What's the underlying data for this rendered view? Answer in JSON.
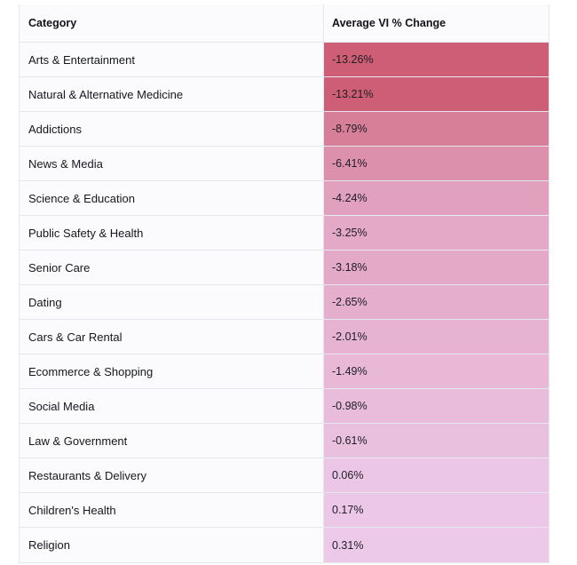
{
  "chart_data": {
    "type": "table",
    "columns": [
      "Category",
      "Average VI % Change"
    ],
    "rows": [
      {
        "category": "Arts & Entertainment",
        "value": -13.26,
        "label": "-13.26%"
      },
      {
        "category": "Natural & Alternative Medicine",
        "value": -13.21,
        "label": "-13.21%"
      },
      {
        "category": "Addictions",
        "value": -8.79,
        "label": "-8.79%"
      },
      {
        "category": "News & Media",
        "value": -6.41,
        "label": "-6.41%"
      },
      {
        "category": "Science & Education",
        "value": -4.24,
        "label": "-4.24%"
      },
      {
        "category": "Public Safety & Health",
        "value": -3.25,
        "label": "-3.25%"
      },
      {
        "category": "Senior Care",
        "value": -3.18,
        "label": "-3.18%"
      },
      {
        "category": "Dating",
        "value": -2.65,
        "label": "-2.65%"
      },
      {
        "category": "Cars & Car Rental",
        "value": -2.01,
        "label": "-2.01%"
      },
      {
        "category": "Ecommerce & Shopping",
        "value": -1.49,
        "label": "-1.49%"
      },
      {
        "category": "Social Media",
        "value": -0.98,
        "label": "-0.98%"
      },
      {
        "category": "Law & Government",
        "value": -0.61,
        "label": "-0.61%"
      },
      {
        "category": "Restaurants & Delivery",
        "value": 0.06,
        "label": "0.06%"
      },
      {
        "category": "Children's Health",
        "value": 0.17,
        "label": "0.17%"
      },
      {
        "category": "Religion",
        "value": 0.31,
        "label": "0.31%"
      }
    ],
    "heat_colors": {
      "most_negative": "#cd5e76",
      "neutral": "#edc9e9"
    }
  }
}
